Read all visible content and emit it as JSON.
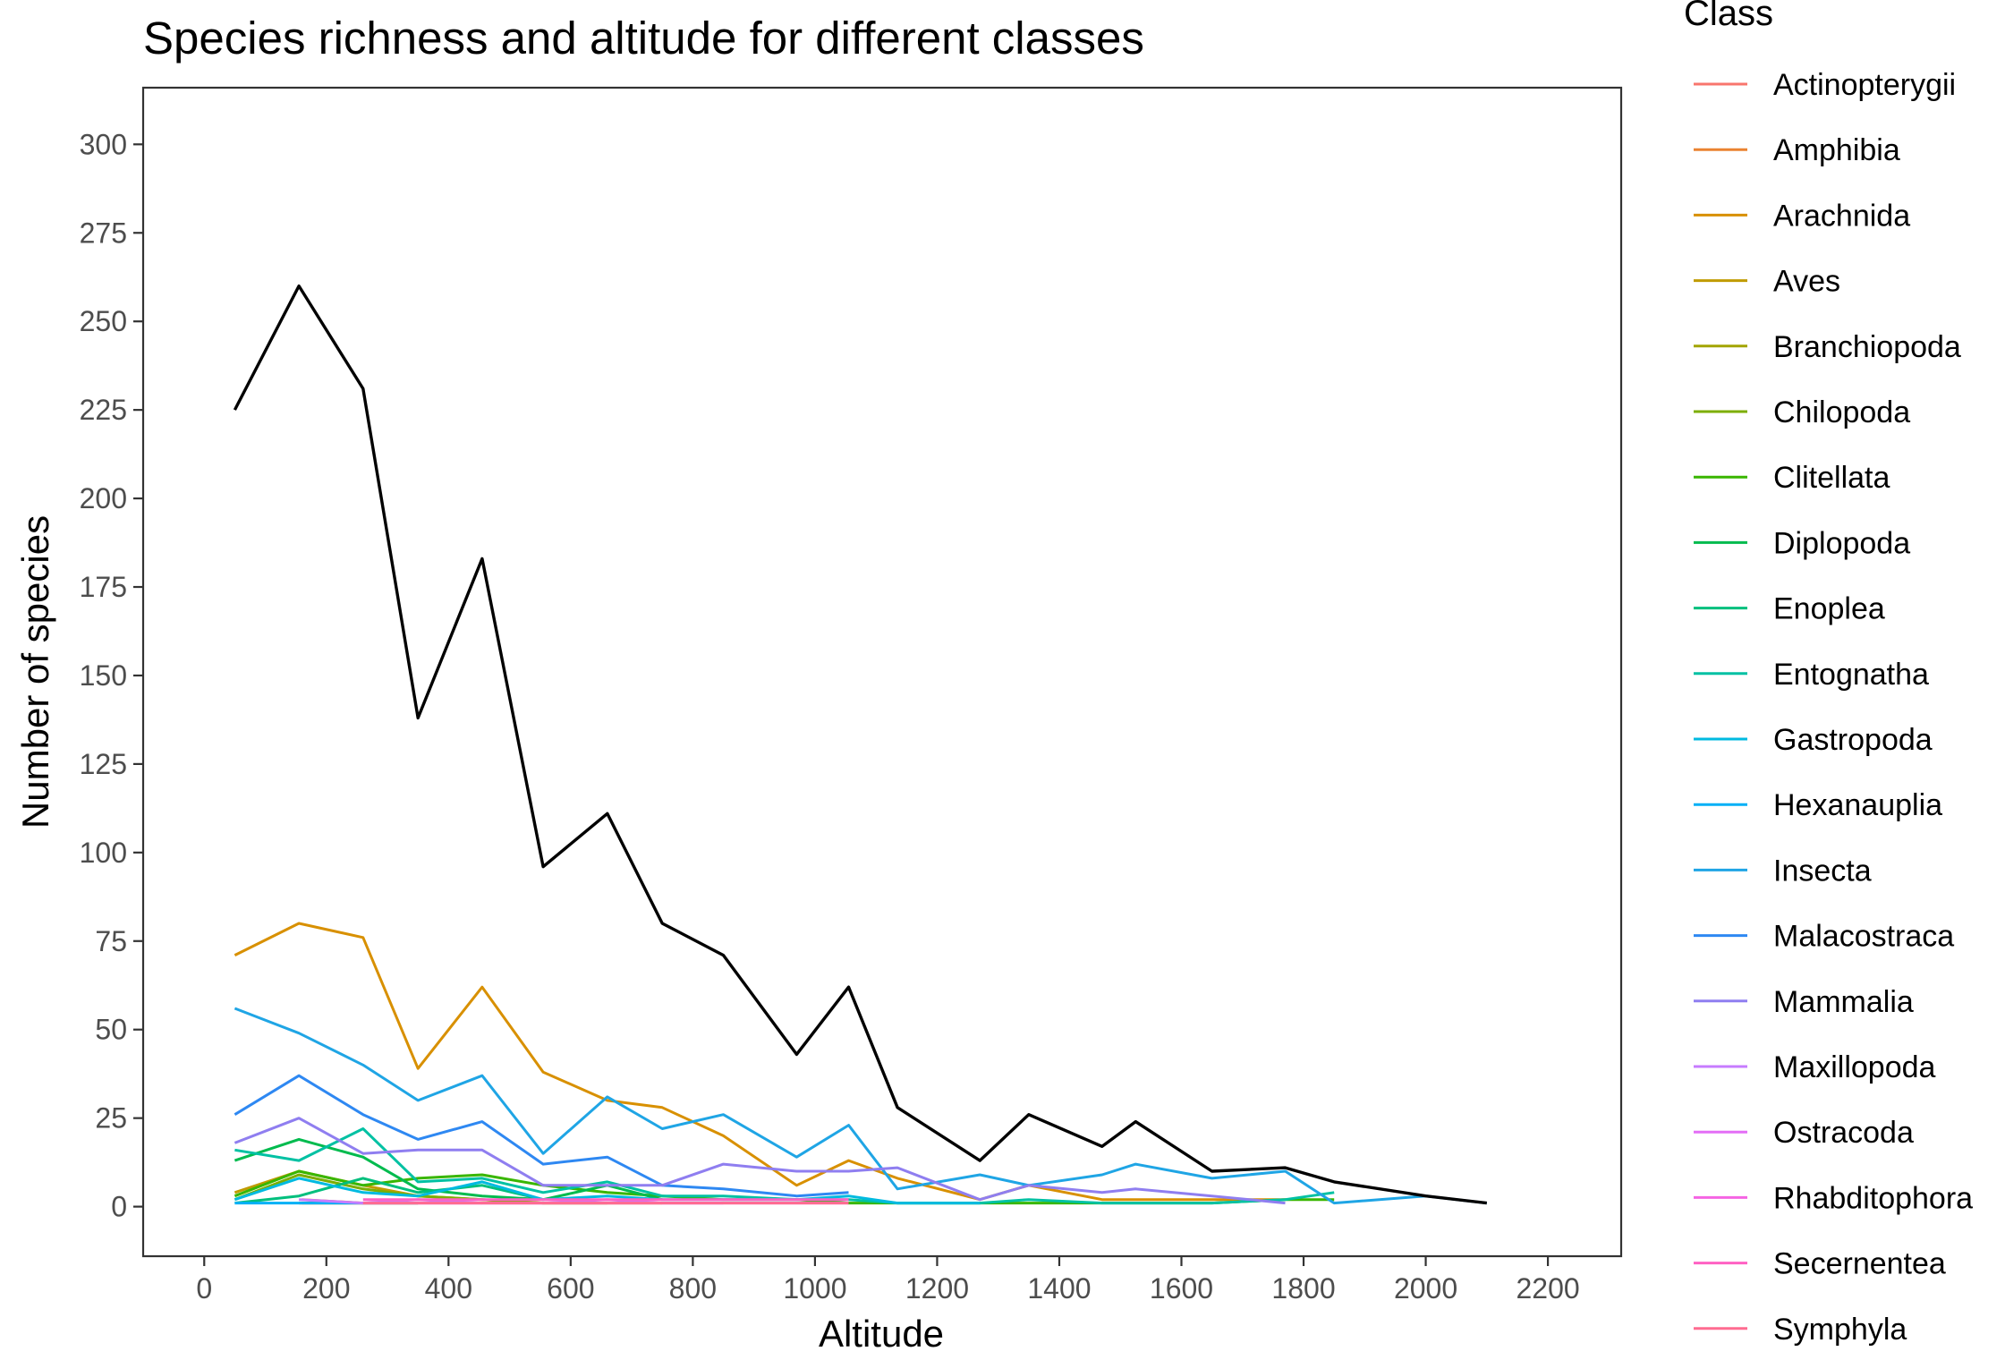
{
  "chart_data": {
    "type": "line",
    "title": "Species richness and altitude for different classes",
    "xlabel": "Altitude",
    "ylabel": "Number of species",
    "xlim": [
      -100,
      2320
    ],
    "ylim": [
      -14,
      316
    ],
    "x_ticks": [
      0,
      200,
      400,
      600,
      800,
      1000,
      1200,
      1400,
      1600,
      1800,
      2000,
      2200
    ],
    "y_ticks": [
      0,
      25,
      50,
      75,
      100,
      125,
      150,
      175,
      200,
      225,
      250,
      275,
      300
    ],
    "grid": false,
    "legend": {
      "title": "Class",
      "position": "right"
    },
    "series": [
      {
        "name": "Actinopterygii",
        "color": "#F8766D",
        "x": [
          160,
          260
        ],
        "y": [
          1,
          1
        ]
      },
      {
        "name": "Amphibia",
        "color": "#EA8331",
        "x": [
          160,
          260,
          350
        ],
        "y": [
          2,
          1,
          1
        ]
      },
      {
        "name": "Arachnida",
        "color": "#D89000",
        "x": [
          50,
          155,
          260,
          350,
          455,
          555,
          660,
          750,
          850,
          970,
          1055,
          1135,
          1270,
          1350,
          1470,
          1525,
          1650,
          1770
        ],
        "y": [
          71,
          80,
          76,
          39,
          62,
          38,
          30,
          28,
          20,
          6,
          13,
          8,
          2,
          6,
          2,
          2,
          2,
          2
        ]
      },
      {
        "name": "Aves",
        "color": "#C09B00",
        "x": [
          50,
          155,
          260,
          350,
          455,
          555,
          660,
          750
        ],
        "y": [
          4,
          10,
          6,
          3,
          2,
          1,
          1,
          1
        ]
      },
      {
        "name": "Branchiopoda",
        "color": "#A3A500",
        "x": [
          155,
          260,
          350
        ],
        "y": [
          1,
          1,
          1
        ]
      },
      {
        "name": "Chilopoda",
        "color": "#7CAE00",
        "x": [
          50,
          155,
          260,
          350,
          455,
          555,
          660
        ],
        "y": [
          2,
          9,
          5,
          3,
          2,
          1,
          1
        ]
      },
      {
        "name": "Clitellata",
        "color": "#39B600",
        "x": [
          50,
          155,
          260,
          350,
          455,
          555,
          660,
          750,
          850,
          970,
          1055,
          1135,
          1270,
          1350,
          1470,
          1525,
          1650,
          1770,
          1850
        ],
        "y": [
          3,
          10,
          6,
          8,
          9,
          6,
          4,
          3,
          2,
          2,
          1,
          1,
          1,
          1,
          1,
          1,
          1,
          2,
          2
        ]
      },
      {
        "name": "Diplopoda",
        "color": "#00BB4E",
        "x": [
          50,
          155,
          260,
          350,
          455,
          555,
          660,
          750
        ],
        "y": [
          13,
          19,
          14,
          5,
          3,
          2,
          6,
          2
        ]
      },
      {
        "name": "Enoplea",
        "color": "#00BF7D",
        "x": [
          50,
          155,
          260,
          350,
          455,
          555
        ],
        "y": [
          1,
          3,
          8,
          4,
          6,
          2
        ]
      },
      {
        "name": "Entognatha",
        "color": "#00C1A3",
        "x": [
          50,
          155,
          260,
          350,
          455,
          555,
          660,
          750,
          850,
          970,
          1055,
          1135,
          1270,
          1350,
          1470,
          1525,
          1650,
          1770,
          1850
        ],
        "y": [
          16,
          13,
          22,
          7,
          8,
          4,
          7,
          3,
          3,
          2,
          2,
          1,
          1,
          2,
          1,
          1,
          1,
          2,
          4
        ]
      },
      {
        "name": "Gastropoda",
        "color": "#00BAE0",
        "x": [
          50,
          155,
          260,
          350,
          455,
          555,
          660,
          750,
          850,
          970,
          1055,
          1135,
          1270
        ],
        "y": [
          2,
          8,
          4,
          3,
          7,
          2,
          3,
          2,
          2,
          2,
          3,
          1,
          1
        ]
      },
      {
        "name": "Hexanauplia",
        "color": "#00B0F6",
        "x": [
          50,
          155,
          260,
          350
        ],
        "y": [
          1,
          1,
          1,
          1
        ]
      },
      {
        "name": "Insecta",
        "color": "#1FA5E5",
        "x": [
          50,
          155,
          260,
          350,
          455,
          555,
          660,
          750,
          850,
          970,
          1055,
          1135,
          1270,
          1350,
          1470,
          1525,
          1650,
          1770,
          1850,
          2000,
          2100
        ],
        "y": [
          56,
          49,
          40,
          30,
          37,
          15,
          31,
          22,
          26,
          14,
          23,
          5,
          9,
          6,
          9,
          12,
          8,
          10,
          1,
          3,
          1
        ]
      },
      {
        "name": "Malacostraca",
        "color": "#2E88F2",
        "x": [
          50,
          155,
          260,
          350,
          455,
          555,
          660,
          750,
          850,
          970,
          1055
        ],
        "y": [
          26,
          37,
          26,
          19,
          24,
          12,
          14,
          6,
          5,
          3,
          4
        ]
      },
      {
        "name": "Mammalia",
        "color": "#8F7EF0",
        "x": [
          50,
          155,
          260,
          350,
          455,
          555,
          660,
          750,
          850,
          970,
          1055,
          1135,
          1270,
          1350,
          1470,
          1525,
          1650,
          1770
        ],
        "y": [
          18,
          25,
          15,
          16,
          16,
          6,
          6,
          6,
          12,
          10,
          10,
          11,
          2,
          6,
          4,
          5,
          3,
          1
        ]
      },
      {
        "name": "Maxillopoda",
        "color": "#C77CFF",
        "x": [
          155,
          260,
          350,
          455,
          555,
          660,
          750,
          850
        ],
        "y": [
          2,
          1,
          2,
          1,
          1,
          2,
          1,
          1
        ]
      },
      {
        "name": "Ostracoda",
        "color": "#E36EF6",
        "x": [
          260,
          350,
          455
        ],
        "y": [
          1,
          1,
          1
        ]
      },
      {
        "name": "Rhabditophora",
        "color": "#F564E3",
        "x": [
          350,
          455,
          555,
          660,
          750,
          850,
          970,
          1055
        ],
        "y": [
          1,
          1,
          1,
          1,
          1,
          1,
          1,
          1
        ]
      },
      {
        "name": "Secernentea",
        "color": "#FF61C3",
        "x": [
          260,
          350,
          455,
          555,
          660,
          750,
          850,
          970,
          1055
        ],
        "y": [
          2,
          2,
          2,
          2,
          2,
          2,
          2,
          2,
          2
        ]
      },
      {
        "name": "Symphyla",
        "color": "#FF6C91",
        "x": [
          260,
          350,
          455,
          555,
          660,
          750,
          850,
          970,
          1055
        ],
        "y": [
          1,
          1,
          1,
          1,
          1,
          1,
          1,
          1,
          1
        ]
      },
      {
        "color": "#000000",
        "x": [
          50,
          155,
          260,
          350,
          455,
          555,
          660,
          750,
          850,
          970,
          1055,
          1135,
          1270,
          1350,
          1470,
          1525,
          1650,
          1770,
          1850,
          2000,
          2100
        ],
        "y": [
          225,
          260,
          231,
          138,
          183,
          96,
          111,
          80,
          71,
          43,
          62,
          28,
          13,
          26,
          17,
          24,
          10,
          11,
          7,
          3,
          1
        ]
      }
    ]
  }
}
